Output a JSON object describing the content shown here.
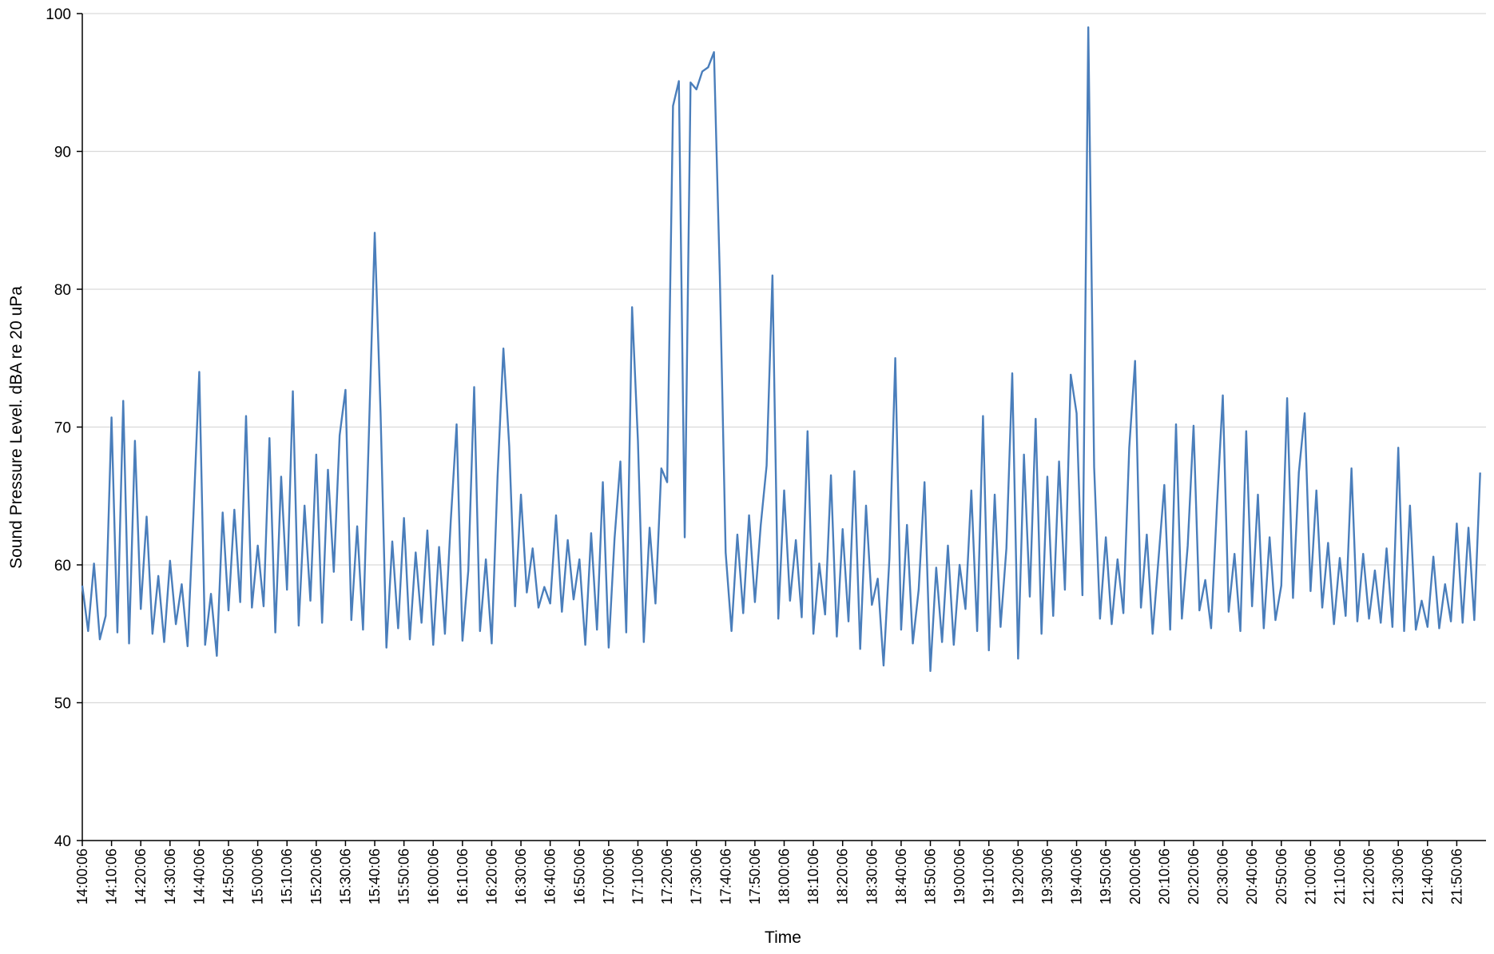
{
  "chart_data": {
    "type": "line",
    "x_label": "Time",
    "y_label": "Sound Pressure Level. dBA re 20 uPa",
    "color": "#4a7ebb",
    "grid": true,
    "ylim": [
      40,
      100
    ],
    "yticks": [
      40,
      50,
      60,
      70,
      80,
      90,
      100
    ],
    "categories": [
      "14:00:06",
      null,
      null,
      null,
      null,
      "14:10:06",
      null,
      null,
      null,
      null,
      "14:20:06",
      null,
      null,
      null,
      null,
      "14:30:06",
      null,
      null,
      null,
      null,
      "14:40:06",
      null,
      null,
      null,
      null,
      "14:50:06",
      null,
      null,
      null,
      null,
      "15:00:06",
      null,
      null,
      null,
      null,
      "15:10:06",
      null,
      null,
      null,
      null,
      "15:20:06",
      null,
      null,
      null,
      null,
      "15:30:06",
      null,
      null,
      null,
      null,
      "15:40:06",
      null,
      null,
      null,
      null,
      "15:50:06",
      null,
      null,
      null,
      null,
      "16:00:06",
      null,
      null,
      null,
      null,
      "16:10:06",
      null,
      null,
      null,
      null,
      "16:20:06",
      null,
      null,
      null,
      null,
      "16:30:06",
      null,
      null,
      null,
      null,
      "16:40:06",
      null,
      null,
      null,
      null,
      "16:50:06",
      null,
      null,
      null,
      null,
      "17:00:06",
      null,
      null,
      null,
      null,
      "17:10:06",
      null,
      null,
      null,
      null,
      "17:20:06",
      null,
      null,
      null,
      null,
      "17:30:06",
      null,
      null,
      null,
      null,
      "17:40:06",
      null,
      null,
      null,
      null,
      "17:50:06",
      null,
      null,
      null,
      null,
      "18:00:06",
      null,
      null,
      null,
      null,
      "18:10:06",
      null,
      null,
      null,
      null,
      "18:20:06",
      null,
      null,
      null,
      null,
      "18:30:06",
      null,
      null,
      null,
      null,
      "18:40:06",
      null,
      null,
      null,
      null,
      "18:50:06",
      null,
      null,
      null,
      null,
      "19:00:06",
      null,
      null,
      null,
      null,
      "19:10:06",
      null,
      null,
      null,
      null,
      "19:20:06",
      null,
      null,
      null,
      null,
      "19:30:06",
      null,
      null,
      null,
      null,
      "19:40:06",
      null,
      null,
      null,
      null,
      "19:50:06",
      null,
      null,
      null,
      null,
      "20:00:06",
      null,
      null,
      null,
      null,
      "20:10:06",
      null,
      null,
      null,
      null,
      "20:20:06",
      null,
      null,
      null,
      null,
      "20:30:06",
      null,
      null,
      null,
      null,
      "20:40:06",
      null,
      null,
      null,
      null,
      "20:50:06",
      null,
      null,
      null,
      null,
      "21:00:06",
      null,
      null,
      null,
      null,
      "21:10:06",
      null,
      null,
      null,
      null,
      "21:20:06",
      null,
      null,
      null,
      null,
      "21:30:06",
      null,
      null,
      null,
      null,
      "21:40:06",
      null,
      null,
      null,
      null,
      "21:50:06",
      null,
      null,
      null,
      null
    ],
    "values": [
      58.5,
      55.2,
      60.1,
      54.6,
      56.3,
      70.7,
      55.1,
      71.9,
      54.3,
      69.0,
      56.8,
      63.5,
      55.0,
      59.2,
      54.4,
      60.3,
      55.7,
      58.6,
      54.1,
      63.6,
      74.0,
      54.2,
      57.9,
      53.4,
      63.8,
      56.7,
      64.0,
      57.3,
      70.8,
      56.9,
      61.4,
      57.0,
      69.2,
      55.1,
      66.4,
      58.2,
      72.6,
      55.6,
      64.3,
      57.4,
      68.0,
      55.8,
      66.9,
      59.5,
      69.4,
      72.7,
      56.0,
      62.8,
      55.3,
      69.5,
      84.1,
      71.0,
      54.0,
      61.7,
      55.4,
      63.4,
      54.6,
      60.9,
      55.8,
      62.5,
      54.2,
      61.3,
      55.0,
      63.2,
      70.2,
      54.5,
      59.6,
      72.9,
      55.2,
      60.4,
      54.3,
      66.4,
      75.7,
      68.6,
      57.0,
      65.1,
      58.0,
      61.2,
      56.9,
      58.4,
      57.2,
      63.6,
      56.6,
      61.8,
      57.5,
      60.4,
      54.2,
      62.3,
      55.3,
      66.0,
      54.0,
      61.9,
      67.5,
      55.1,
      78.7,
      69.0,
      54.4,
      62.7,
      57.2,
      67.0,
      66.0,
      93.3,
      95.1,
      62.0,
      95.0,
      94.5,
      95.8,
      96.1,
      97.2,
      81.0,
      60.9,
      55.2,
      62.2,
      56.5,
      63.6,
      57.3,
      62.9,
      67.2,
      81.0,
      56.1,
      65.4,
      57.4,
      61.8,
      56.2,
      69.7,
      55.0,
      60.1,
      56.4,
      66.5,
      54.8,
      62.6,
      55.9,
      66.8,
      53.9,
      64.3,
      57.1,
      59.0,
      52.7,
      60.5,
      75.0,
      55.3,
      62.9,
      54.3,
      58.2,
      66.0,
      52.3,
      59.8,
      54.4,
      61.4,
      54.2,
      60.0,
      56.8,
      65.4,
      55.2,
      70.8,
      53.8,
      65.1,
      55.5,
      61.2,
      73.9,
      53.2,
      68.0,
      57.7,
      70.6,
      55.0,
      66.4,
      56.3,
      67.5,
      58.2,
      73.8,
      71.0,
      57.8,
      99.0,
      67.1,
      56.1,
      62.0,
      55.7,
      60.4,
      56.5,
      68.5,
      74.8,
      56.9,
      62.2,
      55.0,
      60.4,
      65.8,
      55.3,
      70.2,
      56.1,
      61.4,
      70.1,
      56.7,
      58.9,
      55.4,
      64.3,
      72.3,
      56.6,
      60.8,
      55.2,
      69.7,
      57.0,
      65.1,
      55.4,
      62.0,
      56.0,
      58.5,
      72.1,
      57.6,
      66.7,
      71.0,
      58.1,
      65.4,
      56.9,
      61.6,
      55.7,
      60.5,
      56.3,
      67.0,
      55.9,
      60.8,
      56.1,
      59.6,
      55.8,
      61.2,
      55.5,
      68.5,
      55.2,
      64.3,
      55.3,
      57.4,
      55.5,
      60.6,
      55.4,
      58.6,
      55.9,
      63.0,
      55.8,
      62.7,
      56.0,
      66.7
    ]
  }
}
